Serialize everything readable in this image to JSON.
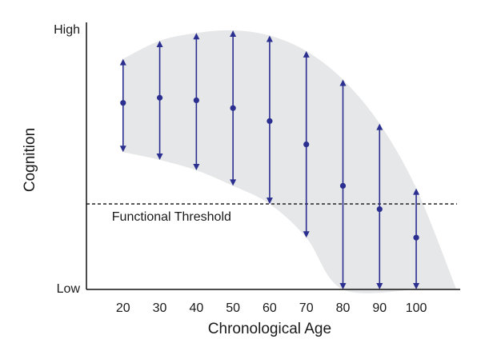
{
  "chart_data": {
    "type": "range",
    "title": "",
    "xlabel": "Chronological Age",
    "ylabel": "Cognition",
    "xlim": [
      10,
      112
    ],
    "ylim": [
      0,
      10
    ],
    "x_ticks": [
      20,
      30,
      40,
      50,
      60,
      70,
      80,
      90,
      100
    ],
    "y_tick_labels": {
      "low": "Low",
      "high": "High"
    },
    "grid": false,
    "series": [
      {
        "points": [
          {
            "x": 20,
            "mean": 7.2,
            "low": 5.3,
            "high": 8.9
          },
          {
            "x": 30,
            "mean": 7.4,
            "low": 5.0,
            "high": 9.6
          },
          {
            "x": 40,
            "mean": 7.3,
            "low": 4.6,
            "high": 9.9
          },
          {
            "x": 50,
            "mean": 7.0,
            "low": 4.0,
            "high": 10.0
          },
          {
            "x": 60,
            "mean": 6.5,
            "low": 3.3,
            "high": 9.8
          },
          {
            "x": 70,
            "mean": 5.6,
            "low": 2.0,
            "high": 9.2
          },
          {
            "x": 80,
            "mean": 4.0,
            "low": 0.0,
            "high": 8.1
          },
          {
            "x": 90,
            "mean": 3.1,
            "low": 0.0,
            "high": 6.4
          },
          {
            "x": 100,
            "mean": 2.0,
            "low": 0.0,
            "high": 3.9
          }
        ]
      }
    ],
    "threshold": {
      "value": 3.3,
      "label": "Functional Threshold",
      "style": "dashed"
    },
    "colors": {
      "marker": "#2b2f8f",
      "band": "#e6e7e8",
      "threshold": "#333333"
    }
  }
}
